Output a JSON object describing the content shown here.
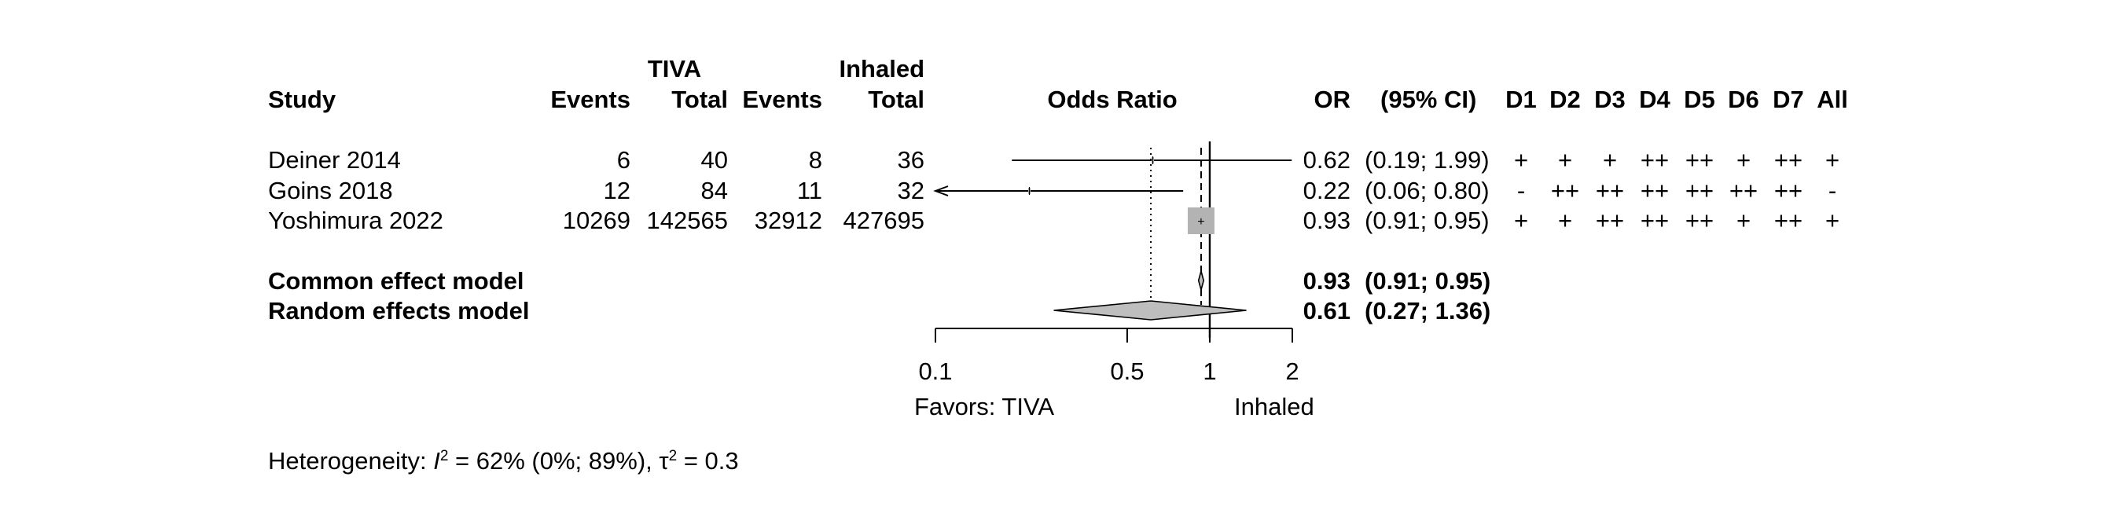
{
  "headers": {
    "study": "Study",
    "group1": "TIVA",
    "group2": "Inhaled",
    "events": "Events",
    "total": "Total",
    "effect": "Odds Ratio",
    "or": "OR",
    "ci": "(95% CI)",
    "domains": [
      "D1",
      "D2",
      "D3",
      "D4",
      "D5",
      "D6",
      "D7",
      "All"
    ]
  },
  "studies": [
    {
      "name": "Deiner 2014",
      "events_tiva": "6",
      "total_tiva": "40",
      "events_inh": "8",
      "total_inh": "36",
      "or": 0.62,
      "lower": 0.19,
      "upper": 1.99,
      "or_text": "0.62",
      "ci_text": "(0.19; 1.99)",
      "rob": [
        "+",
        "+",
        "+",
        "++",
        "++",
        "+",
        "++",
        "+"
      ]
    },
    {
      "name": "Goins 2018",
      "events_tiva": "12",
      "total_tiva": "84",
      "events_inh": "11",
      "total_inh": "32",
      "or": 0.22,
      "lower": 0.06,
      "upper": 0.8,
      "or_text": "0.22",
      "ci_text": "(0.06; 0.80)",
      "rob": [
        "-",
        "++",
        "++",
        "++",
        "++",
        "++",
        "++",
        "-"
      ]
    },
    {
      "name": "Yoshimura 2022",
      "events_tiva": "10269",
      "total_tiva": "142565",
      "events_inh": "32912",
      "total_inh": "427695",
      "or": 0.93,
      "lower": 0.91,
      "upper": 0.95,
      "or_text": "0.93",
      "ci_text": "(0.91; 0.95)",
      "rob": [
        "+",
        "+",
        "++",
        "++",
        "++",
        "+",
        "++",
        "+"
      ]
    }
  ],
  "models": [
    {
      "name": "Common effect model",
      "or": 0.93,
      "lower": 0.91,
      "upper": 0.95,
      "or_text": "0.93",
      "ci_text": "(0.91; 0.95)"
    },
    {
      "name": "Random effects model",
      "or": 0.61,
      "lower": 0.27,
      "upper": 1.36,
      "or_text": "0.61",
      "ci_text": "(0.27; 1.36)"
    }
  ],
  "heterogeneity": {
    "prefix": "Heterogeneity: ",
    "i2_symbol": "I",
    "i2_sup": "2",
    "i2_rest": " = 62% (0%; 89%), ",
    "tau_symbol": "τ",
    "tau_sup": "2",
    "tau_rest": " = 0.3"
  },
  "chart_data": {
    "type": "forest",
    "effect_measure": "Odds Ratio",
    "x_scale": "log",
    "xlim": [
      0.1,
      2
    ],
    "ticks": [
      0.1,
      0.5,
      1,
      2
    ],
    "tick_labels": [
      "0.1",
      "0.5",
      "1",
      "2"
    ],
    "reference_line": 1,
    "favors_left": "Favors: TIVA",
    "favors_right": "Inhaled",
    "series": [
      {
        "label": "Deiner 2014",
        "or": 0.62,
        "lower": 0.19,
        "upper": 1.99
      },
      {
        "label": "Goins 2018",
        "or": 0.22,
        "lower": 0.06,
        "upper": 0.8
      },
      {
        "label": "Yoshimura 2022",
        "or": 0.93,
        "lower": 0.91,
        "upper": 0.95
      },
      {
        "label": "Common effect model",
        "or": 0.93,
        "lower": 0.91,
        "upper": 0.95
      },
      {
        "label": "Random effects model",
        "or": 0.61,
        "lower": 0.27,
        "upper": 1.36
      }
    ],
    "colors": {
      "square": "#b3b3b3",
      "diamond": "#bebebe",
      "line": "#000000"
    }
  }
}
